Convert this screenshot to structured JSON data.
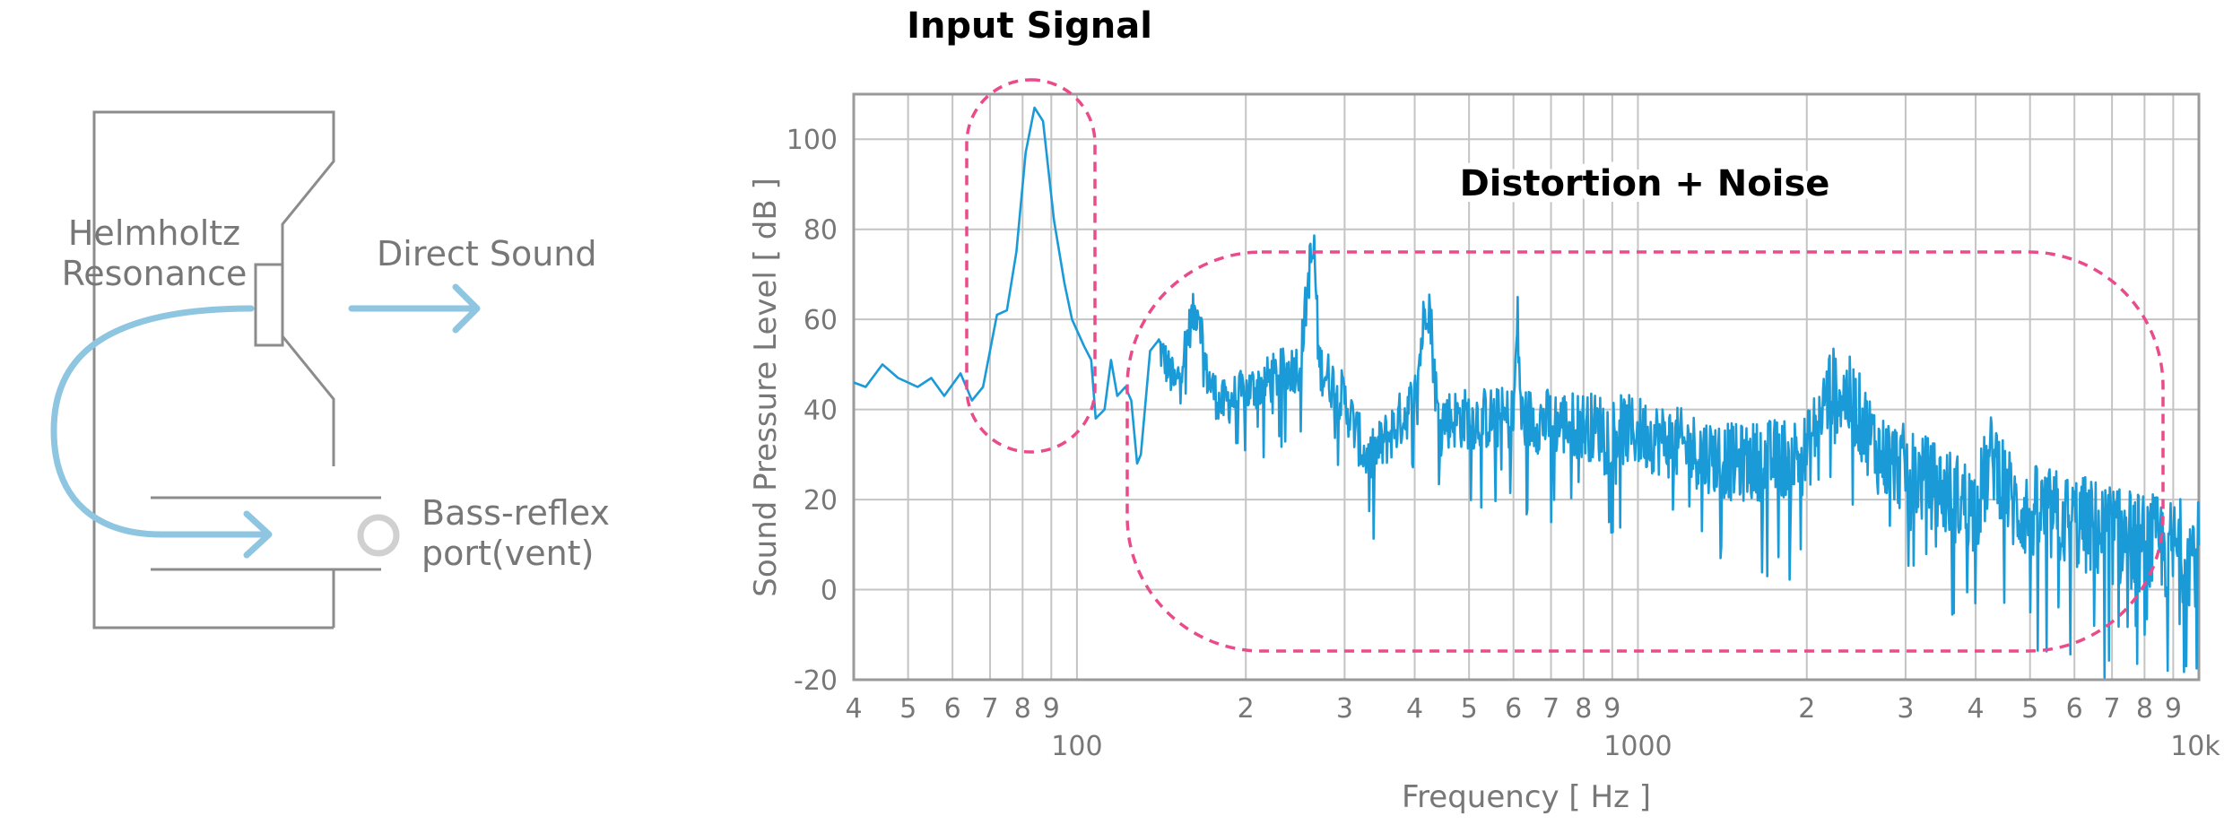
{
  "diagram": {
    "helmholtz_label_line1": "Helmholtz",
    "helmholtz_label_line2": "Resonance",
    "direct_sound_label": "Direct Sound",
    "bass_reflex_label_line1": "Bass-reflex",
    "bass_reflex_label_line2": "port(vent)",
    "colors": {
      "outline": "#8c8c8c",
      "arrow": "#8ec5e0",
      "text": "#777777"
    }
  },
  "chart_data": {
    "type": "line",
    "title": "",
    "xlabel": "Frequency [ Hz ]",
    "ylabel": "Sound Pressure Level [ dB ]",
    "x_scale": "log",
    "xlim": [
      40,
      10000
    ],
    "ylim": [
      -20,
      110
    ],
    "grid": true,
    "y_ticks": [
      "-20",
      "0",
      "20",
      "40",
      "60",
      "80",
      "100"
    ],
    "x_minor_tick_labels": [
      "4",
      "5",
      "6",
      "7",
      "8",
      "9",
      "2",
      "3",
      "4",
      "5",
      "6",
      "7",
      "8",
      "9",
      "2",
      "3",
      "4",
      "5",
      "6",
      "7",
      "8",
      "9"
    ],
    "x_major_tick_labels": [
      "100",
      "1000",
      "10k"
    ],
    "annotations": [
      "Input Signal",
      "Distortion + Noise"
    ],
    "series": [
      {
        "color": "#1a9ad6",
        "key_points": [
          [
            40,
            46
          ],
          [
            42,
            45
          ],
          [
            45,
            50
          ],
          [
            48,
            47
          ],
          [
            52,
            45
          ],
          [
            55,
            47
          ],
          [
            58,
            43
          ],
          [
            62,
            48
          ],
          [
            65,
            42
          ],
          [
            68,
            45
          ],
          [
            72,
            61
          ],
          [
            75,
            62
          ],
          [
            78,
            75
          ],
          [
            81,
            97
          ],
          [
            84,
            107
          ],
          [
            87,
            104
          ],
          [
            91,
            82
          ],
          [
            95,
            68
          ],
          [
            98,
            60
          ],
          [
            103,
            54
          ],
          [
            106,
            51
          ],
          [
            108,
            38
          ],
          [
            112,
            40
          ],
          [
            115,
            51
          ],
          [
            118,
            43
          ],
          [
            122,
            45
          ],
          [
            125,
            42
          ],
          [
            128,
            30
          ],
          [
            130,
            45
          ],
          [
            135,
            53
          ],
          [
            139,
            55
          ],
          [
            150,
            45
          ],
          [
            160,
            60
          ],
          [
            165,
            63
          ],
          [
            170,
            48
          ],
          [
            180,
            41
          ],
          [
            250,
            50
          ],
          [
            260,
            72
          ],
          [
            265,
            75
          ],
          [
            270,
            50
          ],
          [
            300,
            42
          ],
          [
            330,
            28
          ],
          [
            400,
            42
          ],
          [
            420,
            65
          ],
          [
            425,
            63
          ],
          [
            440,
            38
          ],
          [
            600,
            38
          ],
          [
            610,
            60
          ],
          [
            620,
            38
          ],
          [
            1000,
            35
          ],
          [
            1500,
            28
          ],
          [
            2000,
            30
          ],
          [
            2200,
            45
          ],
          [
            2400,
            42
          ],
          [
            2700,
            30
          ],
          [
            3500,
            22
          ],
          [
            4000,
            18
          ],
          [
            4300,
            30
          ],
          [
            4700,
            18
          ],
          [
            6000,
            15
          ],
          [
            8000,
            10
          ],
          [
            10000,
            8
          ]
        ],
        "noise_amplitude_db": 8,
        "noise_dips": [
          [
            130,
            30
          ],
          [
            128,
            28
          ],
          [
            330,
            27
          ],
          [
            700,
            15
          ],
          [
            1300,
            13
          ],
          [
            1700,
            3
          ],
          [
            4000,
            -3
          ],
          [
            5000,
            -5
          ],
          [
            6500,
            -8
          ],
          [
            8000,
            -10
          ],
          [
            8800,
            -18
          ],
          [
            9500,
            -17
          ]
        ]
      }
    ]
  }
}
